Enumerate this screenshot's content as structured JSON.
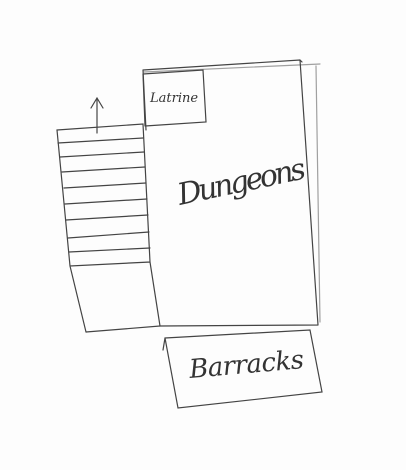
{
  "rooms": [
    {
      "label": "Latrine"
    },
    {
      "label": "Dungeons"
    },
    {
      "label": "Barracks"
    }
  ]
}
